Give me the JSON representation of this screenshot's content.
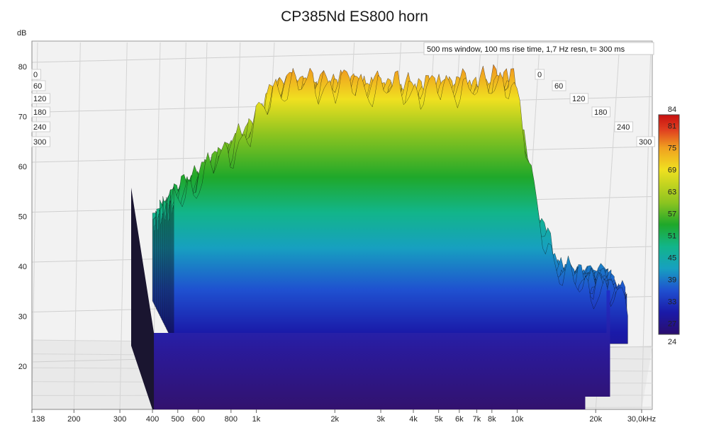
{
  "chart_data": {
    "type": "waterfall",
    "title": "CP385Nd ES800 horn",
    "info": "500 ms window, 100 ms rise time,  1,7 Hz resn, t= 300 ms",
    "ylabel": "dB",
    "y_ticks": [
      "20",
      "30",
      "40",
      "50",
      "60",
      "70",
      "80"
    ],
    "ylim": [
      14,
      86
    ],
    "x_ticks": [
      "138",
      "200",
      "300",
      "400",
      "500",
      "600",
      "800",
      "1k",
      "2k",
      "3k",
      "4k",
      "5k",
      "6k",
      "7k",
      "8k",
      "10k",
      "20k",
      "30,0kHz"
    ],
    "x_tick_values": [
      138,
      200,
      300,
      400,
      500,
      600,
      800,
      1000,
      2000,
      3000,
      4000,
      5000,
      6000,
      7000,
      8000,
      10000,
      20000,
      30000
    ],
    "xlim": [
      138,
      30000
    ],
    "x_scale": "log",
    "data_range_hz": [
      400,
      22000
    ],
    "time_ticks_left": [
      "0",
      "60",
      "120",
      "180",
      "240",
      "300"
    ],
    "time_ticks_right": [
      "0",
      "60",
      "120",
      "180",
      "240",
      "300"
    ],
    "time_unit": "ms",
    "time_range": [
      0,
      300
    ],
    "colorbar": {
      "ticks": [
        "84",
        "81",
        "75",
        "69",
        "63",
        "57",
        "51",
        "45",
        "39",
        "33",
        "27",
        "24"
      ],
      "range": [
        24,
        84
      ],
      "stops": [
        "#2a0d6e",
        "#1a1aa8",
        "#1f50d0",
        "#17a0c0",
        "#12b58a",
        "#1fa82a",
        "#8cc420",
        "#f0e020",
        "#f0a020",
        "#e04020",
        "#c81010"
      ]
    },
    "frequency_response_0ms": {
      "freq_hz": [
        400,
        500,
        600,
        800,
        1000,
        1500,
        2000,
        3000,
        4000,
        5000,
        6000,
        7000,
        8000,
        10000,
        12000,
        15000,
        20000
      ],
      "spl_db": [
        56,
        60,
        64,
        70,
        79,
        79,
        79,
        78,
        78,
        79,
        78,
        80,
        80,
        53,
        41,
        39,
        36
      ]
    },
    "floor_db": 33
  }
}
